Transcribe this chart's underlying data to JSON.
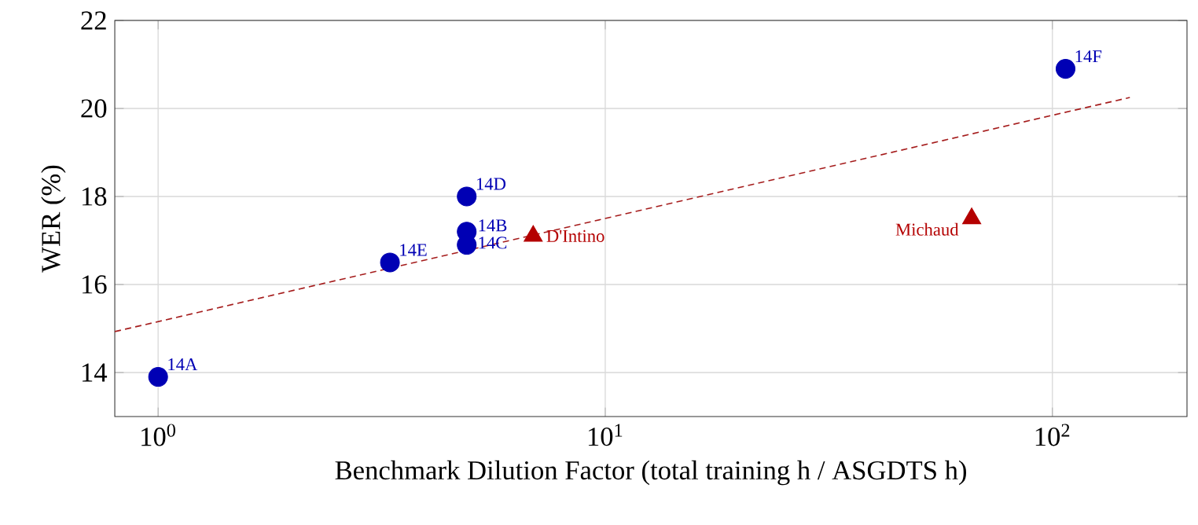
{
  "chart_data": {
    "type": "scatter",
    "xlabel": "Benchmark Dilution Factor (total training h / ASGDTS h)",
    "ylabel": "WER (%)",
    "log": "x",
    "xlim": [
      0.8,
      200
    ],
    "ylim": [
      13,
      22
    ],
    "xticks": [
      {
        "value": 1,
        "label": "10$^{0}$"
      },
      {
        "value": 10,
        "label": "10$^{1}$"
      },
      {
        "value": 100,
        "label": "10$^{2}$"
      }
    ],
    "yticks": [
      14,
      16,
      18,
      20,
      22
    ],
    "grid": true,
    "series": [
      {
        "color": "#0000b4",
        "marker": "circle",
        "x": [
          1,
          4.9,
          4.9,
          4.9,
          3.3,
          107
        ],
        "values": [
          13.9,
          17.2,
          16.9,
          18.0,
          16.5,
          20.9
        ]
      },
      {
        "color": "#b40000",
        "marker": "triangle",
        "x": [
          6.9,
          66
        ],
        "values": [
          17.1,
          17.5
        ]
      },
      {
        "type": "line",
        "color": "#a51c1c",
        "line_style": "dashed",
        "marker": "none",
        "x": [
          0.8,
          149
        ],
        "values": [
          14.93,
          20.25
        ]
      }
    ],
    "annotations": [
      {
        "text": "14A",
        "x": 1,
        "y": 13.9
      },
      {
        "text": "14B",
        "x": 4.9,
        "y": 17.2
      },
      {
        "text": "14C",
        "x": 4.9,
        "y": 16.9
      },
      {
        "text": "14D",
        "x": 4.9,
        "y": 18.0
      },
      {
        "text": "14E",
        "x": 3.3,
        "y": 16.5
      },
      {
        "text": "14F",
        "x": 107,
        "y": 20.9
      },
      {
        "text": "D'Intino",
        "x": 6.9,
        "y": 17.1
      },
      {
        "text": "Michaud",
        "x": 66,
        "y": 17.5
      }
    ]
  }
}
